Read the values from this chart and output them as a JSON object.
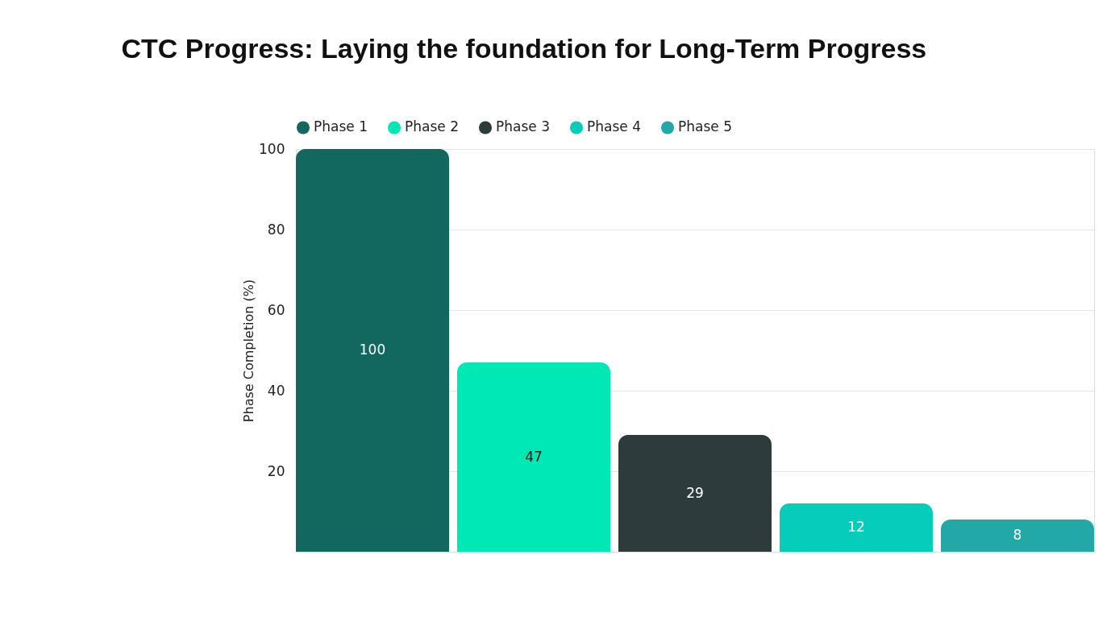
{
  "chart_data": {
    "type": "bar",
    "title": "CTC Progress: Laying the foundation for Long-Term Progress",
    "ylabel": "Phase Completion (%)",
    "categories": [
      null,
      null,
      null,
      null,
      null
    ],
    "series": [
      {
        "name": "Phase 1",
        "color": "#12685f",
        "values": [
          100,
          null,
          null,
          null,
          null
        ]
      },
      {
        "name": "Phase 2",
        "color": "#00e8b4",
        "values": [
          null,
          47,
          null,
          null,
          null
        ]
      },
      {
        "name": "Phase 3",
        "color": "#2d3b3c",
        "values": [
          null,
          null,
          29,
          null,
          null
        ]
      },
      {
        "name": "Phase 4",
        "color": "#06ccba",
        "values": [
          null,
          null,
          null,
          12,
          null
        ]
      },
      {
        "name": "Phase 5",
        "color": "#23a8a8",
        "values": [
          null,
          null,
          null,
          null,
          8
        ]
      }
    ],
    "ylim": [
      0,
      100
    ],
    "yticks": [
      20,
      40,
      60,
      80,
      100
    ],
    "grid": "y",
    "legend": "top",
    "tick_labels": "y",
    "data_labels": true
  }
}
